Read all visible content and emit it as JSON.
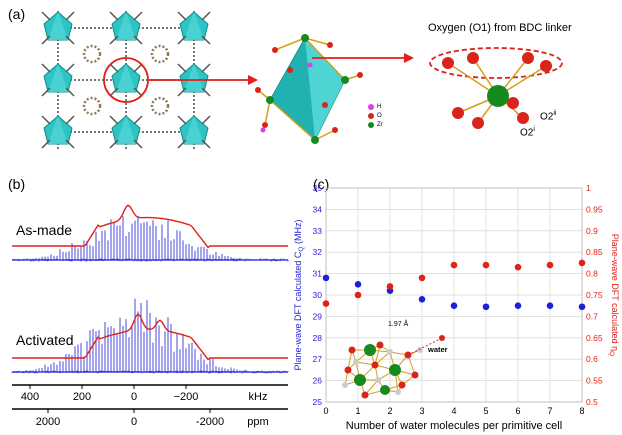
{
  "panel_a": {
    "label": "(a)",
    "caption": "Oxygen (O1) from BDC linker",
    "legend": [
      {
        "symbol": "H",
        "color": "#e23de2"
      },
      {
        "symbol": "O",
        "color": "#d9241c"
      },
      {
        "symbol": "Zr",
        "color": "#178a1f"
      }
    ],
    "o2_ii": "O2",
    "o2_ii_sup": "ii",
    "o2_i": "O2",
    "o2_i_sup": "i"
  },
  "panel_b": {
    "label": "(b)",
    "spectra": [
      "As-made",
      "Activated"
    ],
    "axis_khz": {
      "ticks": [
        "400",
        "200",
        "0",
        "−200"
      ],
      "unit": "kHz"
    },
    "axis_ppm": {
      "ticks": [
        "2000",
        "0",
        "-2000"
      ],
      "unit": "ppm"
    }
  },
  "panel_c": {
    "label": "(c)",
    "water_annotation": "water",
    "bond_annotation": "1.97 Å"
  },
  "colors": {
    "blue": "#1f1fd6",
    "red": "#e0201a",
    "teal": "#2ec4c4"
  },
  "chart_data": {
    "type": "scatter",
    "xlabel": "Number of water molecules per primitive cell",
    "ylabel_left": "Plane-wave DFT calculated C",
    "ylabel_left_sub": "Q",
    "ylabel_left_unit": " (MHz)",
    "ylabel_right": "Plane-wave DFT calculated η",
    "ylabel_right_sub": "Q",
    "xlim": [
      0,
      8
    ],
    "xticks": [
      "0",
      "1",
      "2",
      "3",
      "4",
      "5",
      "6",
      "7",
      "8"
    ],
    "ylim_left": [
      25,
      35
    ],
    "yticks_left": [
      "25",
      "26",
      "27",
      "28",
      "29",
      "30",
      "31",
      "32",
      "33",
      "34",
      "35"
    ],
    "ylim_right": [
      0.5,
      1
    ],
    "yticks_right": [
      "0.5",
      "0.55",
      "0.6",
      "0.65",
      "0.7",
      "0.75",
      "0.8",
      "0.85",
      "0.9",
      "0.95",
      "1"
    ],
    "grid": true,
    "series": [
      {
        "axis": "left",
        "color": "#1f1fd6",
        "x": [
          0,
          1,
          2,
          3,
          4,
          5,
          6,
          7,
          8
        ],
        "y": [
          30.8,
          30.5,
          30.2,
          29.8,
          29.5,
          29.45,
          29.5,
          29.5,
          29.45
        ]
      },
      {
        "axis": "right",
        "color": "#e0201a",
        "x": [
          0,
          1,
          2,
          3,
          4,
          5,
          6,
          7,
          8
        ],
        "y": [
          0.73,
          0.75,
          0.77,
          0.79,
          0.82,
          0.82,
          0.815,
          0.82,
          0.825
        ]
      }
    ]
  }
}
